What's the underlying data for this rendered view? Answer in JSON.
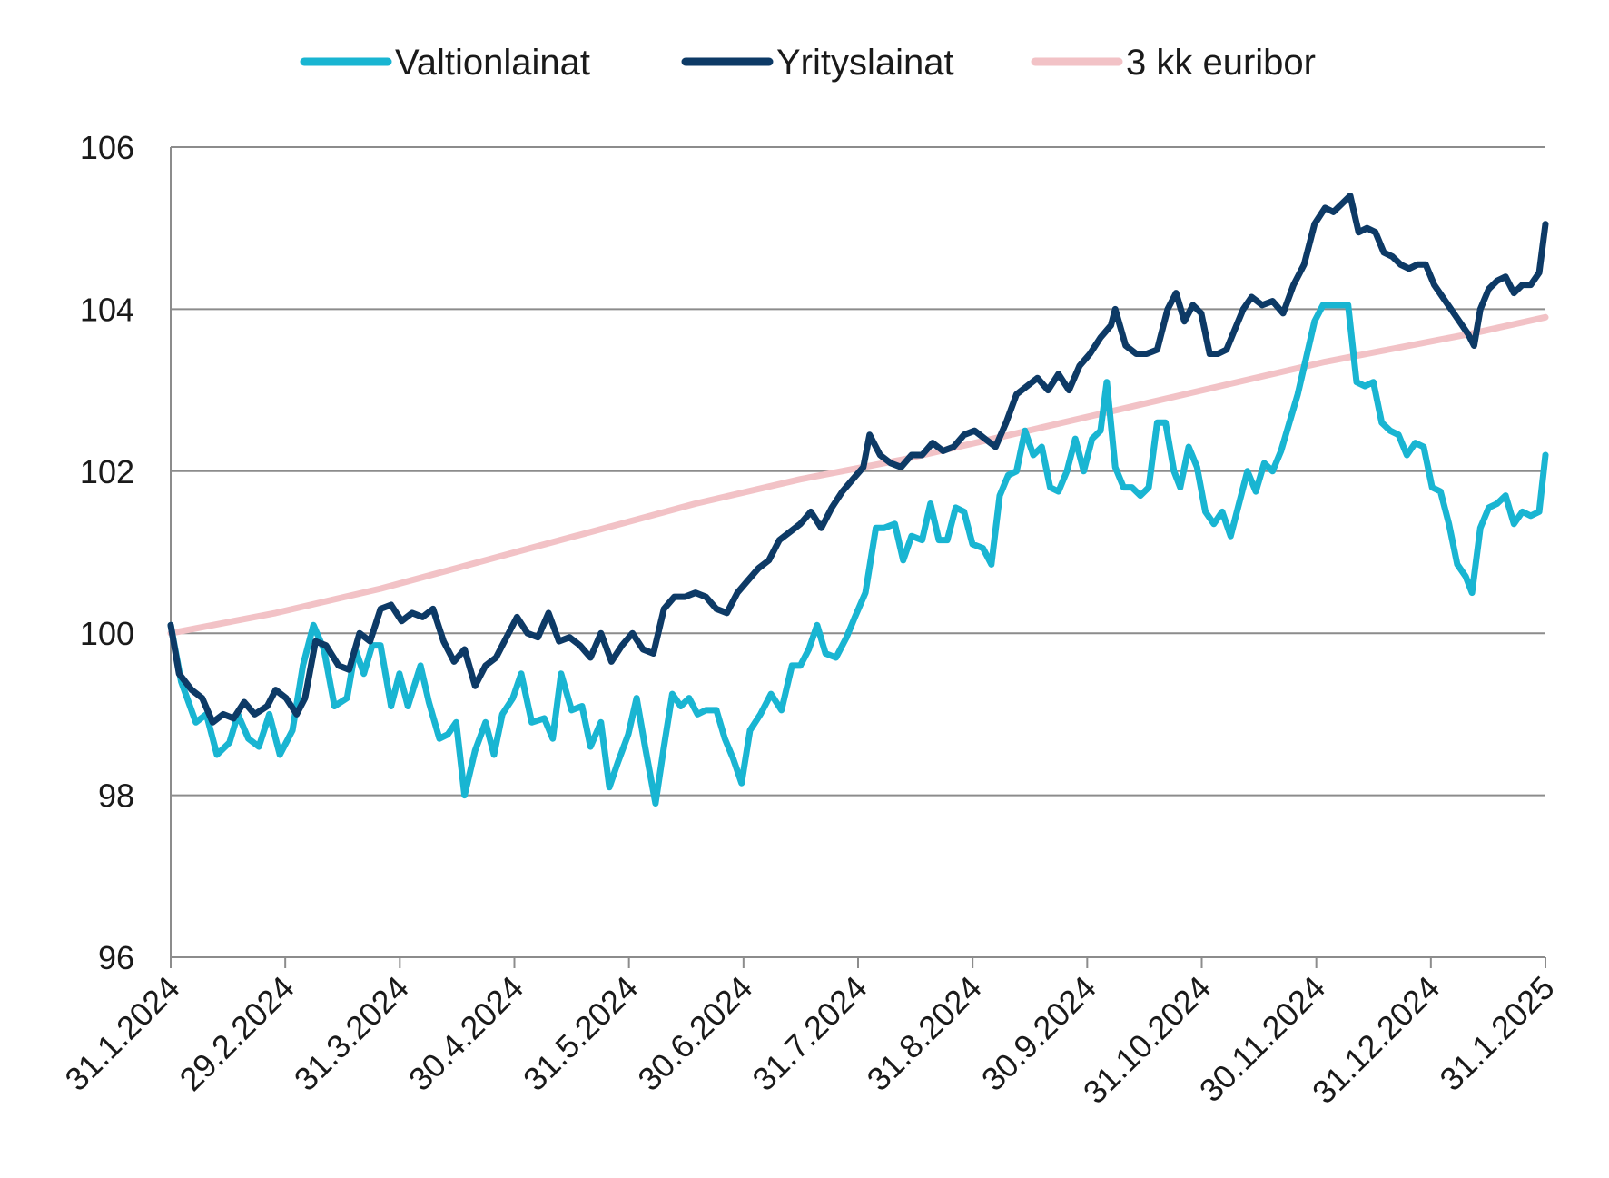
{
  "chart_data": {
    "type": "line",
    "title": "",
    "xlabel": "",
    "ylabel": "",
    "ylim": [
      96,
      106
    ],
    "yticks": [
      96,
      98,
      100,
      102,
      104,
      106
    ],
    "x_tick_labels": [
      "31.1.2024",
      "29.2.2024",
      "31.3.2024",
      "30.4.2024",
      "31.5.2024",
      "30.6.2024",
      "31.7.2024",
      "31.8.2024",
      "30.9.2024",
      "31.10.2024",
      "30.11.2024",
      "31.12.2024",
      "31.1.2025"
    ],
    "grid": true,
    "legend": "top",
    "series": [
      {
        "name": "Valtionlainat",
        "color": "#19b5d2",
        "points": [
          [
            0,
            100.1
          ],
          [
            0.5,
            99.4
          ],
          [
            1.2,
            98.9
          ],
          [
            1.7,
            99.0
          ],
          [
            2.2,
            98.5
          ],
          [
            2.8,
            98.65
          ],
          [
            3.2,
            99.0
          ],
          [
            3.7,
            98.7
          ],
          [
            4.2,
            98.6
          ],
          [
            4.7,
            99.0
          ],
          [
            5.2,
            98.5
          ],
          [
            5.8,
            98.8
          ],
          [
            6.3,
            99.6
          ],
          [
            6.8,
            100.1
          ],
          [
            7.3,
            99.8
          ],
          [
            7.8,
            99.1
          ],
          [
            8.4,
            99.2
          ],
          [
            8.8,
            99.8
          ],
          [
            9.2,
            99.5
          ],
          [
            9.6,
            99.85
          ],
          [
            10.0,
            99.85
          ],
          [
            10.5,
            99.1
          ],
          [
            10.9,
            99.5
          ],
          [
            11.3,
            99.1
          ],
          [
            11.9,
            99.6
          ],
          [
            12.3,
            99.15
          ],
          [
            12.8,
            98.7
          ],
          [
            13.2,
            98.75
          ],
          [
            13.6,
            98.9
          ],
          [
            14.0,
            98.0
          ],
          [
            14.5,
            98.55
          ],
          [
            15.0,
            98.9
          ],
          [
            15.4,
            98.5
          ],
          [
            15.8,
            99.0
          ],
          [
            16.3,
            99.2
          ],
          [
            16.7,
            99.5
          ],
          [
            17.2,
            98.9
          ],
          [
            17.8,
            98.95
          ],
          [
            18.2,
            98.7
          ],
          [
            18.6,
            99.5
          ],
          [
            19.1,
            99.05
          ],
          [
            19.6,
            99.1
          ],
          [
            20.0,
            98.6
          ],
          [
            20.5,
            98.9
          ],
          [
            20.9,
            98.1
          ],
          [
            21.3,
            98.4
          ],
          [
            21.8,
            98.75
          ],
          [
            22.2,
            99.2
          ],
          [
            22.6,
            98.6
          ],
          [
            23.1,
            97.9
          ],
          [
            23.5,
            98.6
          ],
          [
            23.9,
            99.25
          ],
          [
            24.3,
            99.1
          ],
          [
            24.7,
            99.2
          ],
          [
            25.1,
            99.0
          ],
          [
            25.5,
            99.05
          ],
          [
            26.0,
            99.05
          ],
          [
            26.4,
            98.7
          ],
          [
            26.8,
            98.45
          ],
          [
            27.2,
            98.15
          ],
          [
            27.6,
            98.8
          ],
          [
            28.1,
            99.0
          ],
          [
            28.6,
            99.25
          ],
          [
            29.1,
            99.05
          ],
          [
            29.6,
            99.6
          ],
          [
            30.0,
            99.6
          ],
          [
            30.4,
            99.8
          ],
          [
            30.8,
            100.1
          ],
          [
            31.2,
            99.75
          ],
          [
            31.7,
            99.7
          ],
          [
            32.2,
            99.95
          ],
          [
            32.6,
            100.2
          ],
          [
            33.1,
            100.5
          ],
          [
            33.6,
            101.3
          ],
          [
            34.0,
            101.3
          ],
          [
            34.5,
            101.35
          ],
          [
            34.9,
            100.9
          ],
          [
            35.3,
            101.2
          ],
          [
            35.8,
            101.15
          ],
          [
            36.2,
            101.6
          ],
          [
            36.6,
            101.15
          ],
          [
            37.0,
            101.15
          ],
          [
            37.4,
            101.55
          ],
          [
            37.8,
            101.5
          ],
          [
            38.2,
            101.1
          ],
          [
            38.7,
            101.05
          ],
          [
            39.1,
            100.85
          ],
          [
            39.5,
            101.7
          ],
          [
            39.9,
            101.95
          ],
          [
            40.3,
            102.0
          ],
          [
            40.7,
            102.5
          ],
          [
            41.1,
            102.2
          ],
          [
            41.5,
            102.3
          ],
          [
            41.9,
            101.8
          ],
          [
            42.3,
            101.75
          ],
          [
            42.7,
            102.0
          ],
          [
            43.1,
            102.4
          ],
          [
            43.5,
            102.0
          ],
          [
            43.9,
            102.4
          ],
          [
            44.3,
            102.5
          ],
          [
            44.6,
            103.1
          ],
          [
            45.0,
            102.05
          ],
          [
            45.4,
            101.8
          ],
          [
            45.8,
            101.8
          ],
          [
            46.2,
            101.7
          ],
          [
            46.6,
            101.8
          ],
          [
            47.0,
            102.6
          ],
          [
            47.4,
            102.6
          ],
          [
            47.8,
            102.0
          ],
          [
            48.1,
            101.8
          ],
          [
            48.5,
            102.3
          ],
          [
            48.9,
            102.05
          ],
          [
            49.3,
            101.5
          ],
          [
            49.7,
            101.35
          ],
          [
            50.1,
            101.5
          ],
          [
            50.5,
            101.2
          ],
          [
            50.9,
            101.6
          ],
          [
            51.3,
            102.0
          ],
          [
            51.7,
            101.75
          ],
          [
            52.1,
            102.1
          ],
          [
            52.5,
            102.0
          ],
          [
            52.9,
            102.25
          ],
          [
            53.3,
            102.6
          ],
          [
            53.7,
            102.95
          ],
          [
            54.1,
            103.4
          ],
          [
            54.5,
            103.85
          ],
          [
            54.9,
            104.05
          ],
          [
            55.3,
            104.05
          ],
          [
            55.7,
            104.05
          ],
          [
            56.1,
            104.05
          ],
          [
            56.5,
            103.1
          ],
          [
            56.9,
            103.05
          ],
          [
            57.3,
            103.1
          ],
          [
            57.7,
            102.6
          ],
          [
            58.1,
            102.5
          ],
          [
            58.5,
            102.45
          ],
          [
            58.9,
            102.2
          ],
          [
            59.3,
            102.35
          ],
          [
            59.7,
            102.3
          ],
          [
            60.1,
            101.8
          ],
          [
            60.5,
            101.75
          ],
          [
            60.9,
            101.35
          ],
          [
            61.3,
            100.85
          ],
          [
            61.7,
            100.7
          ],
          [
            62.0,
            100.5
          ],
          [
            62.4,
            101.3
          ],
          [
            62.8,
            101.55
          ],
          [
            63.2,
            101.6
          ],
          [
            63.6,
            101.7
          ],
          [
            64.0,
            101.35
          ],
          [
            64.4,
            101.5
          ],
          [
            64.8,
            101.45
          ],
          [
            65.2,
            101.5
          ],
          [
            65.5,
            102.2
          ]
        ]
      },
      {
        "name": "Yrityslainat",
        "color": "#0d3a66",
        "points": [
          [
            0,
            100.1
          ],
          [
            0.4,
            99.5
          ],
          [
            1.0,
            99.3
          ],
          [
            1.5,
            99.2
          ],
          [
            2.0,
            98.9
          ],
          [
            2.5,
            99.0
          ],
          [
            3.0,
            98.95
          ],
          [
            3.5,
            99.15
          ],
          [
            4.0,
            99.0
          ],
          [
            4.6,
            99.1
          ],
          [
            5.0,
            99.3
          ],
          [
            5.5,
            99.2
          ],
          [
            6.0,
            99.0
          ],
          [
            6.4,
            99.2
          ],
          [
            6.9,
            99.9
          ],
          [
            7.4,
            99.85
          ],
          [
            8.0,
            99.6
          ],
          [
            8.5,
            99.55
          ],
          [
            9.0,
            100.0
          ],
          [
            9.5,
            99.9
          ],
          [
            10.0,
            100.3
          ],
          [
            10.5,
            100.35
          ],
          [
            11.0,
            100.15
          ],
          [
            11.5,
            100.25
          ],
          [
            12.0,
            100.2
          ],
          [
            12.5,
            100.3
          ],
          [
            13.0,
            99.9
          ],
          [
            13.5,
            99.65
          ],
          [
            14.0,
            99.8
          ],
          [
            14.5,
            99.35
          ],
          [
            15.0,
            99.6
          ],
          [
            15.5,
            99.7
          ],
          [
            16.0,
            99.95
          ],
          [
            16.5,
            100.2
          ],
          [
            17.0,
            100.0
          ],
          [
            17.5,
            99.95
          ],
          [
            18.0,
            100.25
          ],
          [
            18.5,
            99.9
          ],
          [
            19.0,
            99.95
          ],
          [
            19.5,
            99.85
          ],
          [
            20.0,
            99.7
          ],
          [
            20.5,
            100.0
          ],
          [
            21.0,
            99.65
          ],
          [
            21.5,
            99.85
          ],
          [
            22.0,
            100.0
          ],
          [
            22.5,
            99.8
          ],
          [
            23.0,
            99.75
          ],
          [
            23.5,
            100.3
          ],
          [
            24.0,
            100.45
          ],
          [
            24.5,
            100.45
          ],
          [
            25.0,
            100.5
          ],
          [
            25.5,
            100.45
          ],
          [
            26.0,
            100.3
          ],
          [
            26.5,
            100.25
          ],
          [
            27.0,
            100.5
          ],
          [
            27.5,
            100.65
          ],
          [
            28.0,
            100.8
          ],
          [
            28.5,
            100.9
          ],
          [
            29.0,
            101.15
          ],
          [
            29.5,
            101.25
          ],
          [
            30.0,
            101.35
          ],
          [
            30.5,
            101.5
          ],
          [
            31.0,
            101.3
          ],
          [
            31.5,
            101.55
          ],
          [
            32.0,
            101.75
          ],
          [
            32.5,
            101.9
          ],
          [
            33.0,
            102.05
          ],
          [
            33.3,
            102.45
          ],
          [
            33.8,
            102.2
          ],
          [
            34.3,
            102.1
          ],
          [
            34.8,
            102.05
          ],
          [
            35.3,
            102.2
          ],
          [
            35.8,
            102.2
          ],
          [
            36.3,
            102.35
          ],
          [
            36.8,
            102.25
          ],
          [
            37.3,
            102.3
          ],
          [
            37.8,
            102.45
          ],
          [
            38.3,
            102.5
          ],
          [
            38.8,
            102.4
          ],
          [
            39.3,
            102.3
          ],
          [
            39.8,
            102.6
          ],
          [
            40.3,
            102.95
          ],
          [
            40.8,
            103.05
          ],
          [
            41.3,
            103.15
          ],
          [
            41.8,
            103.0
          ],
          [
            42.3,
            103.2
          ],
          [
            42.8,
            103.0
          ],
          [
            43.3,
            103.3
          ],
          [
            43.8,
            103.45
          ],
          [
            44.3,
            103.65
          ],
          [
            44.8,
            103.8
          ],
          [
            45.0,
            104.0
          ],
          [
            45.5,
            103.55
          ],
          [
            46.0,
            103.45
          ],
          [
            46.5,
            103.45
          ],
          [
            47.0,
            103.5
          ],
          [
            47.5,
            104.0
          ],
          [
            47.9,
            104.2
          ],
          [
            48.3,
            103.85
          ],
          [
            48.7,
            104.05
          ],
          [
            49.1,
            103.95
          ],
          [
            49.5,
            103.45
          ],
          [
            49.9,
            103.45
          ],
          [
            50.3,
            103.5
          ],
          [
            50.7,
            103.75
          ],
          [
            51.1,
            104.0
          ],
          [
            51.5,
            104.15
          ],
          [
            52.0,
            104.05
          ],
          [
            52.5,
            104.1
          ],
          [
            53.0,
            103.95
          ],
          [
            53.5,
            104.3
          ],
          [
            54.0,
            104.55
          ],
          [
            54.5,
            105.05
          ],
          [
            55.0,
            105.25
          ],
          [
            55.4,
            105.2
          ],
          [
            55.8,
            105.3
          ],
          [
            56.2,
            105.4
          ],
          [
            56.6,
            104.95
          ],
          [
            57.0,
            105.0
          ],
          [
            57.4,
            104.95
          ],
          [
            57.8,
            104.7
          ],
          [
            58.2,
            104.65
          ],
          [
            58.6,
            104.55
          ],
          [
            59.0,
            104.5
          ],
          [
            59.4,
            104.55
          ],
          [
            59.8,
            104.55
          ],
          [
            60.2,
            104.3
          ],
          [
            60.6,
            104.15
          ],
          [
            61.0,
            104.0
          ],
          [
            61.4,
            103.85
          ],
          [
            61.8,
            103.7
          ],
          [
            62.1,
            103.55
          ],
          [
            62.4,
            104.0
          ],
          [
            62.8,
            104.25
          ],
          [
            63.2,
            104.35
          ],
          [
            63.6,
            104.4
          ],
          [
            64.0,
            104.2
          ],
          [
            64.4,
            104.3
          ],
          [
            64.8,
            104.3
          ],
          [
            65.2,
            104.45
          ],
          [
            65.5,
            105.05
          ]
        ]
      },
      {
        "name": "3 kk euribor",
        "color": "#f2c2c6",
        "points": [
          [
            0,
            100.0
          ],
          [
            5,
            100.25
          ],
          [
            10,
            100.55
          ],
          [
            15,
            100.9
          ],
          [
            20,
            101.25
          ],
          [
            25,
            101.6
          ],
          [
            30,
            101.9
          ],
          [
            33,
            102.05
          ],
          [
            35,
            102.15
          ],
          [
            40,
            102.45
          ],
          [
            45,
            102.75
          ],
          [
            50,
            103.05
          ],
          [
            55,
            103.35
          ],
          [
            58,
            103.5
          ],
          [
            60,
            103.6
          ],
          [
            62,
            103.7
          ],
          [
            65.5,
            103.9
          ]
        ]
      }
    ]
  }
}
